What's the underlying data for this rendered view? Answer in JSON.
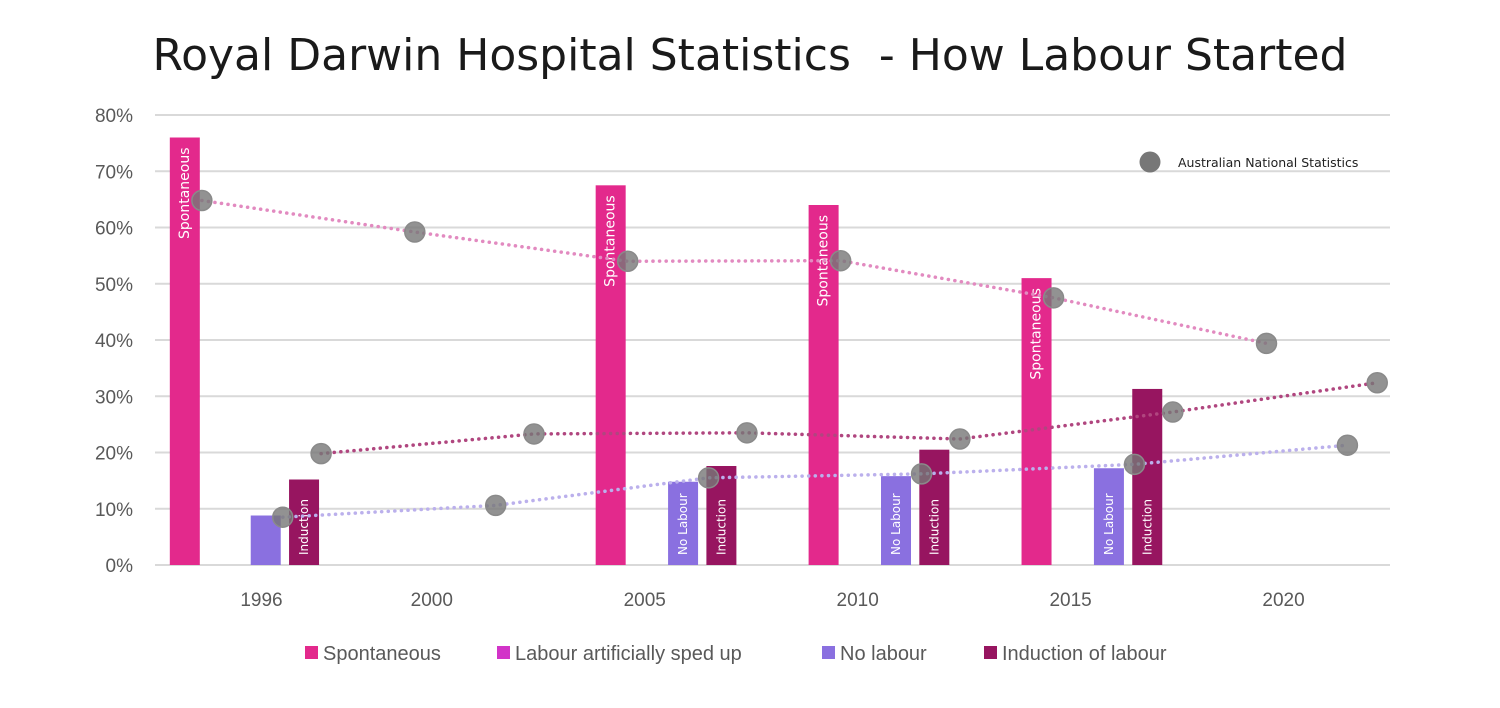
{
  "chart_data": {
    "type": "bar",
    "title": "Royal Darwin Hospital Statistics  - How Labour Started",
    "xlabel": "",
    "ylabel": "",
    "ylim": [
      0,
      80
    ],
    "y_tick_labels": [
      "0%",
      "10%",
      "20%",
      "30%",
      "40%",
      "50%",
      "60%",
      "70%",
      "80%"
    ],
    "x_range": [
      1993.5,
      2022.5
    ],
    "x_tick_labels": [
      "1996",
      "2000",
      "2005",
      "2010",
      "2015",
      "2020"
    ],
    "x_ticks": [
      1996,
      2000,
      2005,
      2010,
      2015,
      2020
    ],
    "grid": true,
    "legend_position": "bottom",
    "series": [
      {
        "name": "Spontaneous",
        "color": "#E3298C",
        "points": [
          {
            "x": 1994.2,
            "value": 76,
            "label": "Spontaneous"
          },
          {
            "x": 2004.2,
            "value": 67.5,
            "label": "Spontaneous"
          },
          {
            "x": 2009.2,
            "value": 64,
            "label": "Spontaneous"
          },
          {
            "x": 2014.2,
            "value": 51,
            "label": "Spontaneous"
          }
        ]
      },
      {
        "name": "Labour artificially sped up",
        "color": "#D234C8",
        "points": []
      },
      {
        "name": "No labour",
        "color": "#8A70E0",
        "points": [
          {
            "x": 1996.1,
            "value": 8.8,
            "label": ""
          },
          {
            "x": 2005.9,
            "value": 14.8,
            "label": "No Labour"
          },
          {
            "x": 2010.9,
            "value": 15.8,
            "label": "No Labour"
          },
          {
            "x": 2015.9,
            "value": 17.2,
            "label": "No Labour"
          }
        ]
      },
      {
        "name": "Induction of labour",
        "color": "#971560",
        "points": [
          {
            "x": 1997.0,
            "value": 15.2,
            "label": "Induction"
          },
          {
            "x": 2006.8,
            "value": 17.6,
            "label": "Induction"
          },
          {
            "x": 2011.8,
            "value": 20.5,
            "label": "Induction"
          },
          {
            "x": 2016.8,
            "value": 31.3,
            "label": "Induction"
          }
        ]
      }
    ],
    "national_statistics": {
      "label": "Australian National Statistics",
      "marker_color": "#777777",
      "lines": [
        {
          "name": "Spontaneous",
          "color": "#E28AC0",
          "points": [
            {
              "x": 1994.6,
              "y": 64.8
            },
            {
              "x": 1999.6,
              "y": 59.2
            },
            {
              "x": 2004.6,
              "y": 54
            },
            {
              "x": 2009.6,
              "y": 54.1
            },
            {
              "x": 2014.6,
              "y": 47.5
            },
            {
              "x": 2019.6,
              "y": 39.4
            }
          ]
        },
        {
          "name": "Induction of labour",
          "color": "#B0467F",
          "points": [
            {
              "x": 1997.4,
              "y": 19.8
            },
            {
              "x": 2002.4,
              "y": 23.3
            },
            {
              "x": 2007.4,
              "y": 23.5
            },
            {
              "x": 2012.4,
              "y": 22.4
            },
            {
              "x": 2017.4,
              "y": 27.2
            },
            {
              "x": 2022.2,
              "y": 32.4
            }
          ]
        },
        {
          "name": "No labour",
          "color": "#BBB0EC",
          "points": [
            {
              "x": 1996.5,
              "y": 8.5
            },
            {
              "x": 2001.5,
              "y": 10.6
            },
            {
              "x": 2006.5,
              "y": 15.5
            },
            {
              "x": 2011.5,
              "y": 16.2
            },
            {
              "x": 2016.5,
              "y": 17.9
            },
            {
              "x": 2021.5,
              "y": 21.3
            }
          ]
        }
      ]
    }
  }
}
